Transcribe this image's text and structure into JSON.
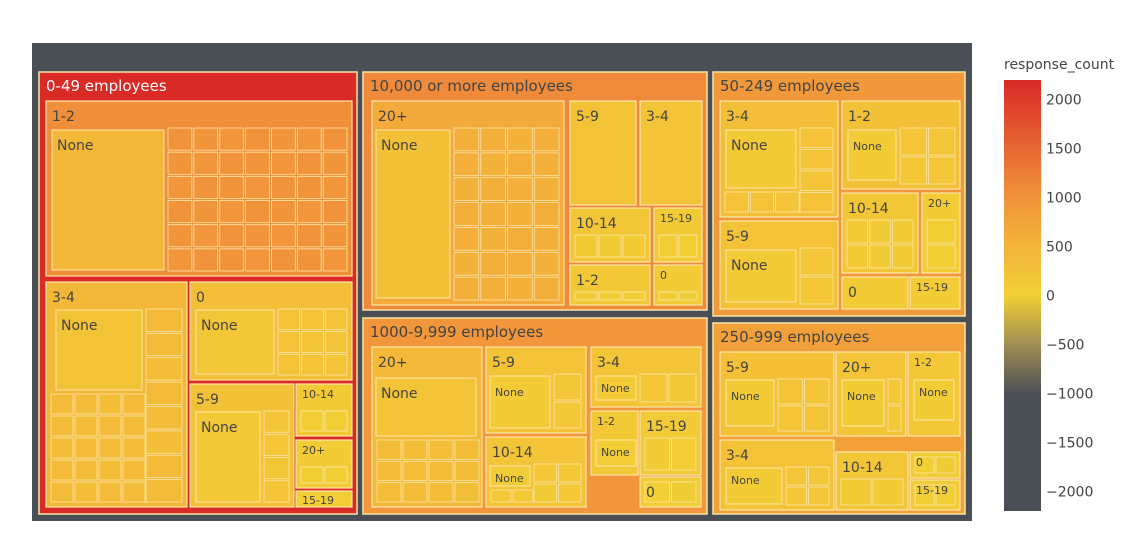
{
  "chart_data": {
    "type": "treemap",
    "colorbar": {
      "title": "response_count",
      "range": [
        -2200,
        2200
      ],
      "ticks": [
        "2000",
        "1500",
        "1000",
        "500",
        "0",
        "−500",
        "−1000",
        "−1500",
        "−2000"
      ],
      "tick_values": [
        2000,
        1500,
        1000,
        500,
        0,
        -500,
        -1000,
        -1500,
        -2000
      ],
      "colorscale": [
        [
          0.0,
          "#4a4f55"
        ],
        [
          0.27,
          "#4a4f55"
        ],
        [
          0.38,
          "#9c8a55"
        ],
        [
          0.5,
          "#f2cf35"
        ],
        [
          0.62,
          "#f4b23a"
        ],
        [
          0.73,
          "#f0923a"
        ],
        [
          1.0,
          "#d92a26"
        ]
      ]
    },
    "groups": [
      {
        "name": "0-49 employees",
        "value": 2200,
        "children": [
          {
            "name": "1-2",
            "value": 1050,
            "leaves": [
              {
                "name": "None",
                "value": 420
              }
            ]
          },
          {
            "name": "3-4",
            "value": 420,
            "leaves": [
              {
                "name": "None",
                "value": 220
              }
            ]
          },
          {
            "name": "0",
            "value": 300,
            "leaves": [
              {
                "name": "None",
                "value": 160
              }
            ]
          },
          {
            "name": "5-9",
            "value": 260,
            "leaves": [
              {
                "name": "None",
                "value": 120
              }
            ]
          },
          {
            "name": "10-14",
            "value": 90,
            "leaves": []
          },
          {
            "name": "20+",
            "value": 80,
            "leaves": []
          },
          {
            "name": "15-19",
            "value": 30,
            "leaves": []
          }
        ]
      },
      {
        "name": "10,000 or more employees",
        "value": 1100,
        "children": [
          {
            "name": "20+",
            "value": 650,
            "leaves": [
              {
                "name": "None",
                "value": 250
              }
            ]
          },
          {
            "name": "5-9",
            "value": 220,
            "leaves": [
              {
                "name": "None",
                "value": 80
              }
            ]
          },
          {
            "name": "3-4",
            "value": 200,
            "leaves": [
              {
                "name": "None",
                "value": 75
              }
            ]
          },
          {
            "name": "10-14",
            "value": 160,
            "leaves": []
          },
          {
            "name": "15-19",
            "value": 100,
            "leaves": []
          },
          {
            "name": "1-2",
            "value": 120,
            "leaves": []
          },
          {
            "name": "0",
            "value": 70,
            "leaves": []
          }
        ]
      },
      {
        "name": "1000-9,999 employees",
        "value": 950,
        "children": [
          {
            "name": "20+",
            "value": 400,
            "leaves": [
              {
                "name": "None",
                "value": 200
              }
            ]
          },
          {
            "name": "5-9",
            "value": 230,
            "leaves": [
              {
                "name": "None",
                "value": 70
              }
            ]
          },
          {
            "name": "3-4",
            "value": 200,
            "leaves": [
              {
                "name": "None",
                "value": 70
              }
            ]
          },
          {
            "name": "10-14",
            "value": 200,
            "leaves": [
              {
                "name": "None",
                "value": 60
              }
            ]
          },
          {
            "name": "1-2",
            "value": 120,
            "leaves": [
              {
                "name": "None",
                "value": 40
              }
            ]
          },
          {
            "name": "15-19",
            "value": 110,
            "leaves": []
          },
          {
            "name": "0",
            "value": 60,
            "leaves": []
          }
        ]
      },
      {
        "name": "50-249 employees",
        "value": 900,
        "children": [
          {
            "name": "3-4",
            "value": 300,
            "leaves": [
              {
                "name": "None",
                "value": 100
              }
            ]
          },
          {
            "name": "1-2",
            "value": 250,
            "leaves": [
              {
                "name": "None",
                "value": 80
              }
            ]
          },
          {
            "name": "5-9",
            "value": 230,
            "leaves": [
              {
                "name": "None",
                "value": 80
              }
            ]
          },
          {
            "name": "10-14",
            "value": 160,
            "leaves": []
          },
          {
            "name": "20+",
            "value": 80,
            "leaves": []
          },
          {
            "name": "0",
            "value": 80,
            "leaves": []
          },
          {
            "name": "15-19",
            "value": 60,
            "leaves": []
          }
        ]
      },
      {
        "name": "250-999 employees",
        "value": 800,
        "children": [
          {
            "name": "5-9",
            "value": 280,
            "leaves": [
              {
                "name": "None",
                "value": 90
              }
            ]
          },
          {
            "name": "20+",
            "value": 200,
            "leaves": [
              {
                "name": "None",
                "value": 60
              }
            ]
          },
          {
            "name": "1-2",
            "value": 150,
            "leaves": [
              {
                "name": "None",
                "value": 50
              }
            ]
          },
          {
            "name": "3-4",
            "value": 240,
            "leaves": [
              {
                "name": "None",
                "value": 80
              }
            ]
          },
          {
            "name": "10-14",
            "value": 160,
            "leaves": []
          },
          {
            "name": "0",
            "value": 60,
            "leaves": []
          },
          {
            "name": "15-19",
            "value": 70,
            "leaves": []
          }
        ]
      }
    ]
  }
}
